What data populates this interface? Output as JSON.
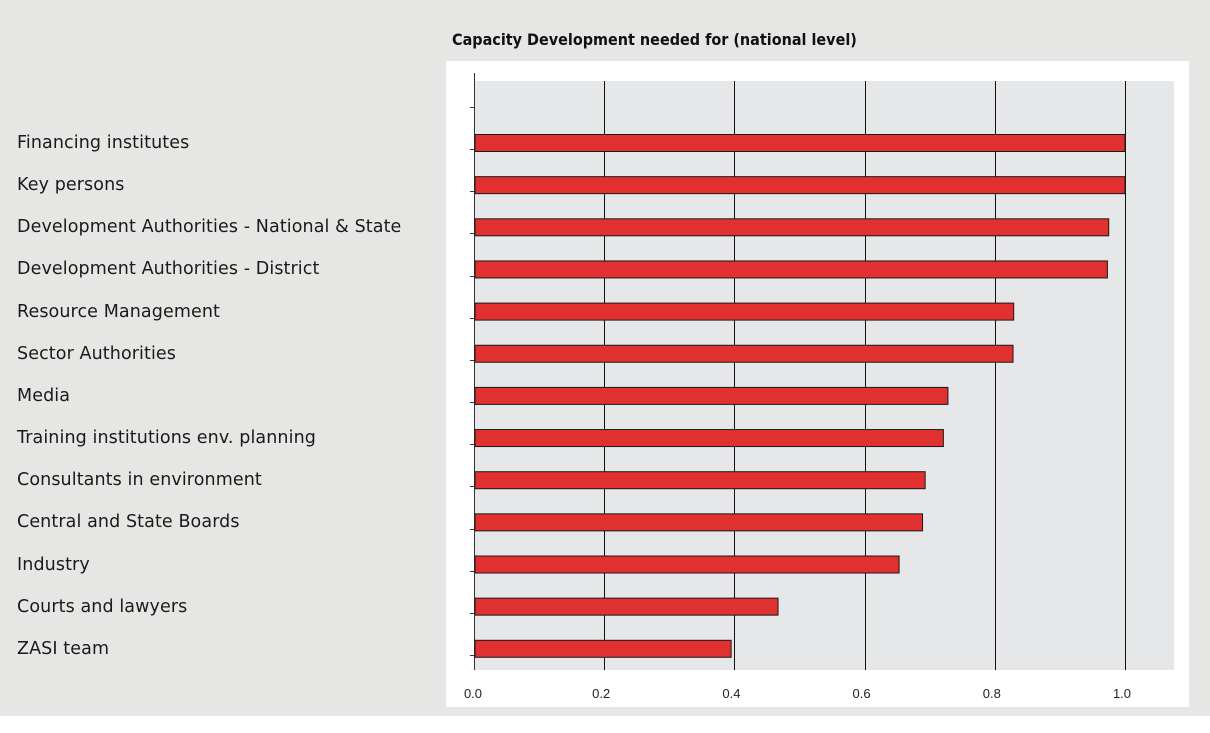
{
  "chart_data": {
    "type": "bar",
    "orientation": "horizontal",
    "title": "Capacity Development needed for (national level)",
    "categories": [
      "Financing institutes",
      "Key persons",
      "Development Authorities - National & State",
      "Development Authorities - District",
      "Resource Management",
      "Sector Authorities",
      "Media",
      "Training institutions env. planning",
      "Consultants in environment",
      "Central and State Boards",
      "Industry",
      "Courts and lawyers",
      "ZASI team"
    ],
    "values": [
      1.0,
      1.0,
      0.975,
      0.973,
      0.829,
      0.828,
      0.728,
      0.721,
      0.693,
      0.689,
      0.653,
      0.467,
      0.395
    ],
    "xlim": [
      0,
      1.075
    ],
    "xticks": [
      0.0,
      0.2,
      0.4,
      0.6,
      0.8,
      1.0
    ],
    "xtick_labels": [
      "0.0",
      "0.2",
      "0.4",
      "0.6",
      "0.8",
      "1.0"
    ],
    "xlabel": "",
    "ylabel": "",
    "grid": "vertical",
    "legend": "none",
    "colors": {
      "bar_fill": "#e0302f",
      "bar_stroke": "#1a1a1a",
      "plot_background": "#e6e7e9",
      "frame_background": "#e6e6e4",
      "grid": "#111111"
    }
  }
}
